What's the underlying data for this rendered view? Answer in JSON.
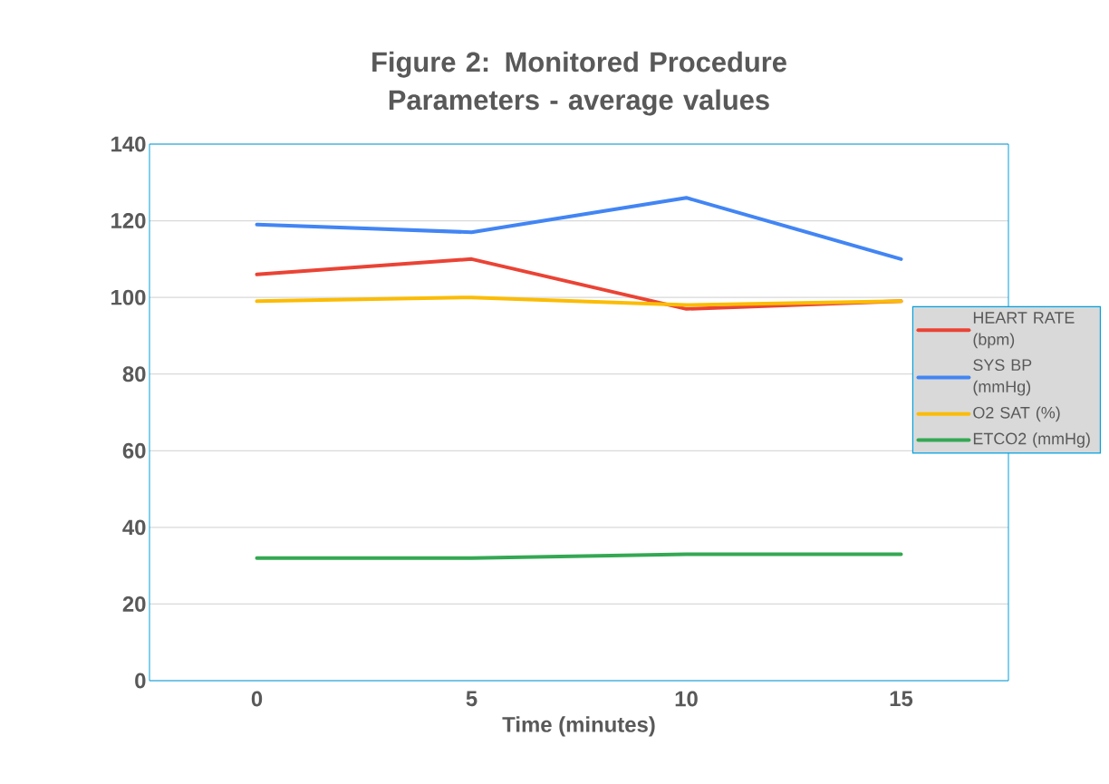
{
  "chart_data": {
    "type": "line",
    "title": "Figure 2: Monitored Procedure Parameters - average values",
    "xlabel": "Time (minutes)",
    "categories": [
      "0",
      "5",
      "10",
      "15"
    ],
    "series": [
      {
        "name": "HEART RATE (bpm)",
        "color": "#ea4335",
        "values": [
          106,
          110,
          97,
          99
        ]
      },
      {
        "name": "SYS BP (mmHg)",
        "color": "#4285f4",
        "values": [
          119,
          117,
          126,
          110
        ]
      },
      {
        "name": "O2 SAT (%)",
        "color": "#fbbc04",
        "values": [
          99,
          100,
          98,
          99
        ]
      },
      {
        "name": "ETCO2 (mmHg)",
        "color": "#34a853",
        "values": [
          32,
          32,
          33,
          33
        ]
      }
    ],
    "ylim": [
      0,
      140
    ],
    "yticks": [
      0,
      20,
      40,
      60,
      80,
      100,
      120,
      140
    ],
    "grid": "y",
    "legend": "right"
  }
}
